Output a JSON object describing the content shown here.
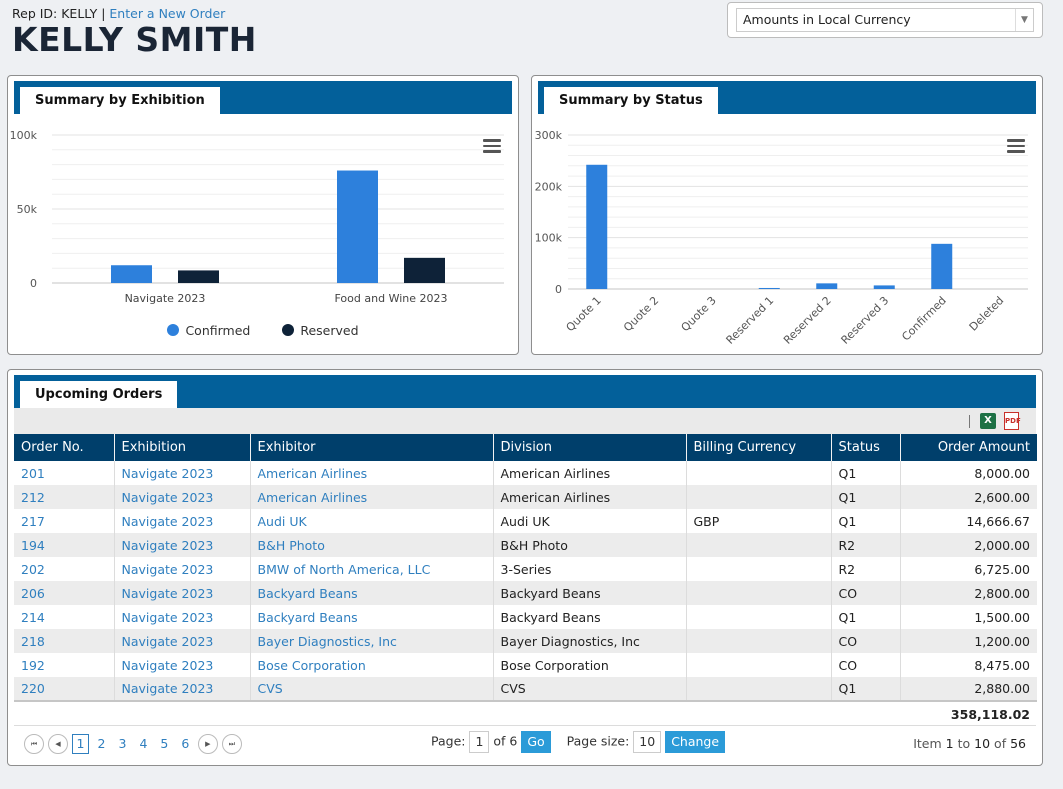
{
  "header": {
    "rep_prefix": "Rep ID: KELLY",
    "separator": "|",
    "new_order_link": "Enter a New Order",
    "user_name": "KELLY SMITH"
  },
  "currency": {
    "selected": "Amounts in Local Currency"
  },
  "exhibition_panel": {
    "title": "Summary by Exhibition"
  },
  "status_panel": {
    "title": "Summary by Status"
  },
  "orders_panel": {
    "title": "Upcoming Orders"
  },
  "colors": {
    "confirmed": "#2d80dc",
    "reserved": "#0e2238",
    "band": "#03609a",
    "header": "#003f6b"
  },
  "chart_data": [
    {
      "type": "bar",
      "title": "Summary by Exhibition",
      "categories": [
        "Navigate 2023",
        "Food and Wine 2023"
      ],
      "series": [
        {
          "name": "Confirmed",
          "values": [
            12000,
            76000
          ]
        },
        {
          "name": "Reserved",
          "values": [
            8500,
            17000
          ]
        }
      ],
      "yticks": [
        "0",
        "50k",
        "100k"
      ],
      "ylim": [
        0,
        100000
      ],
      "legend": "bottom-center"
    },
    {
      "type": "bar",
      "title": "Summary by Status",
      "categories": [
        "Quote 1",
        "Quote 2",
        "Quote 3",
        "Reserved 1",
        "Reserved 2",
        "Reserved 3",
        "Confirmed",
        "Deleted"
      ],
      "values": [
        242000,
        0,
        0,
        2000,
        11000,
        7000,
        88000,
        0
      ],
      "yticks": [
        "0",
        "100k",
        "200k",
        "300k"
      ],
      "ylim": [
        0,
        300000
      ]
    }
  ],
  "table": {
    "columns": [
      "Order No.",
      "Exhibition",
      "Exhibitor",
      "Division",
      "Billing Currency",
      "Status",
      "Order Amount"
    ],
    "rows": [
      [
        "201",
        "Navigate 2023",
        "American Airlines",
        "American Airlines",
        "",
        "Q1",
        "8,000.00"
      ],
      [
        "212",
        "Navigate 2023",
        "American Airlines",
        "American Airlines",
        "",
        "Q1",
        "2,600.00"
      ],
      [
        "217",
        "Navigate 2023",
        "Audi UK",
        "Audi UK",
        "GBP",
        "Q1",
        "14,666.67"
      ],
      [
        "194",
        "Navigate 2023",
        "B&H Photo",
        "B&H Photo",
        "",
        "R2",
        "2,000.00"
      ],
      [
        "202",
        "Navigate 2023",
        "BMW of North America, LLC",
        "3-Series",
        "",
        "R2",
        "6,725.00"
      ],
      [
        "206",
        "Navigate 2023",
        "Backyard Beans",
        "Backyard Beans",
        "",
        "CO",
        "2,800.00"
      ],
      [
        "214",
        "Navigate 2023",
        "Backyard Beans",
        "Backyard Beans",
        "",
        "Q1",
        "1,500.00"
      ],
      [
        "218",
        "Navigate 2023",
        "Bayer Diagnostics, Inc",
        "Bayer Diagnostics, Inc",
        "",
        "CO",
        "1,200.00"
      ],
      [
        "192",
        "Navigate 2023",
        "Bose Corporation",
        "Bose Corporation",
        "",
        "CO",
        "8,475.00"
      ],
      [
        "220",
        "Navigate 2023",
        "CVS",
        "CVS",
        "",
        "Q1",
        "2,880.00"
      ]
    ],
    "total": "358,118.02"
  },
  "pager": {
    "pages": [
      "1",
      "2",
      "3",
      "4",
      "5",
      "6"
    ],
    "current_page": "1",
    "page_label": "Page:",
    "page_value": "1",
    "of_label": "of 6",
    "go_label": "Go",
    "size_label": "Page size:",
    "size_value": "10",
    "change_label": "Change",
    "item_prefix": "Item",
    "item_from": "1",
    "item_to_label": "to",
    "item_to": "10",
    "item_of_label": "of",
    "item_total": "56"
  }
}
